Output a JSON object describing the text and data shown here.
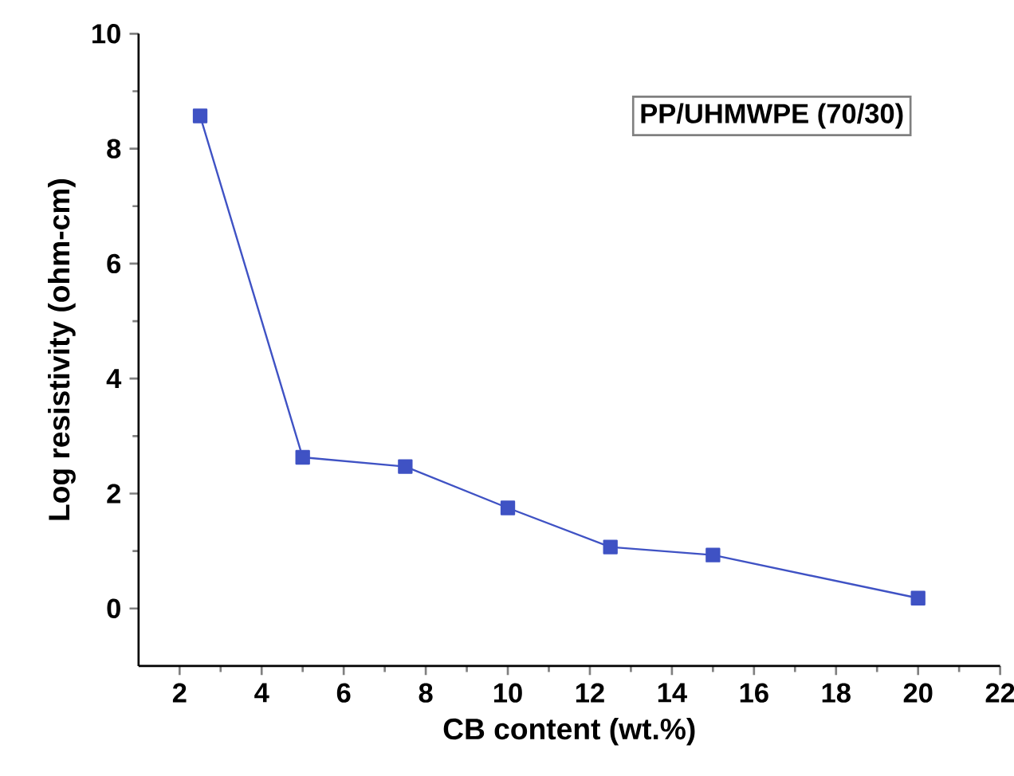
{
  "chart_data": {
    "type": "line",
    "xlabel": "CB content (wt.%)",
    "ylabel": "Log resistivity (ohm-cm)",
    "annotations": [
      "PP/UHMWPE (70/30)"
    ],
    "x": [
      2.5,
      5,
      7.5,
      10,
      12.5,
      15,
      20
    ],
    "series": [
      {
        "color": "#3f52c4",
        "values": [
          8.57,
          2.63,
          2.47,
          1.75,
          1.07,
          0.93,
          0.18
        ]
      }
    ],
    "xlim": [
      1,
      22
    ],
    "xticks": [
      2,
      4,
      6,
      8,
      10,
      12,
      14,
      16,
      18,
      20,
      22
    ],
    "ylim": [
      -1,
      10
    ],
    "yticks": [
      0,
      2,
      4,
      6,
      8,
      10
    ],
    "marker": "square",
    "line_style": "solid",
    "grid": false
  }
}
